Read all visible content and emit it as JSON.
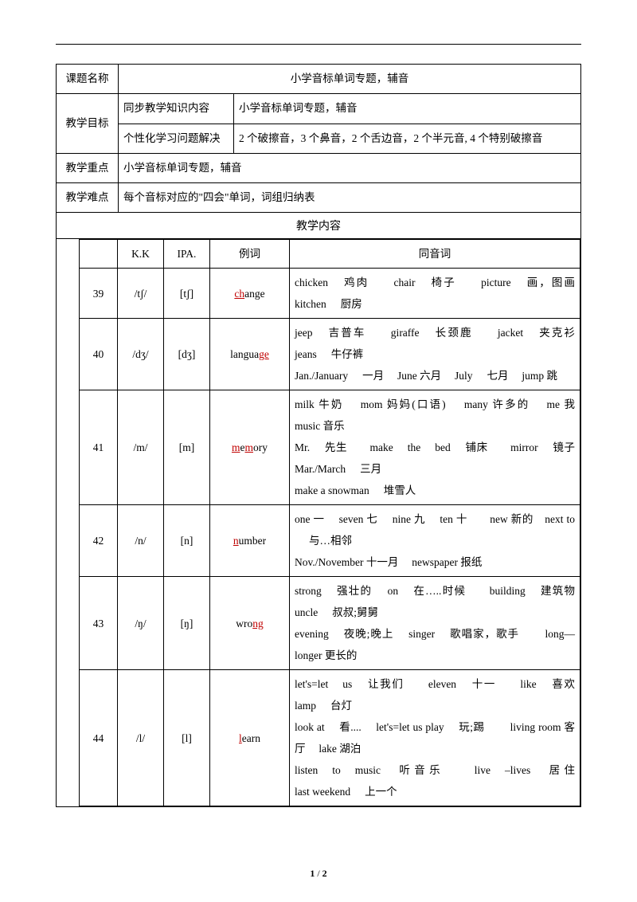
{
  "meta": {
    "row1_label": "课题名称",
    "row1_value": "小学音标单词专题，辅音",
    "row2_label": "教学目标",
    "row2_c2": "同步教学知识内容",
    "row2_c3": "小学音标单词专题，辅音",
    "row3_c2": "个性化学习问题解决",
    "row3_c3": "2 个破擦音，3 个鼻音，2 个舌边音，2 个半元音, 4 个特别破擦音",
    "row4_label": "教学重点",
    "row4_value": "小学音标单词专题，辅音",
    "row5_label": "教学难点",
    "row5_value": "每个音标对应的\"四会\"单词，词组归纳表",
    "section": "教学内容"
  },
  "header": {
    "kk": "K.K",
    "ipa": "IPA.",
    "example": "例词",
    "homonym": "同音词"
  },
  "rows": [
    {
      "n": "39",
      "kk": "/tʃ/",
      "ipa": "[tʃ]",
      "ex_pre": "ch",
      "ex_post": "ange",
      "words": "chicken  鸡肉　　chair  椅子　　picture  画，图画　kitchen  厨房"
    },
    {
      "n": "40",
      "kk": "/dʒ/",
      "ipa": "[dʒ]",
      "ex_pre_plain": "langua",
      "ex_suf": "ge",
      "words": "jeep  吉普车　　giraffe  长颈鹿　　jacket  夹克衫　jeans  牛仔裤\nJan./January  一月　 June 六月　 July  七月　 jump 跳"
    },
    {
      "n": "41",
      "kk": "/m/",
      "ipa": "[m]",
      "ex_parts": [
        "m",
        "e",
        "m",
        "ory"
      ],
      "words": "milk 牛奶　 mom 妈妈(口语)　 many 许多的　 me 我　 music 音乐\nMr.  先生　　make  the  bed  铺床　　mirror  镜子　Mar./March  三月\nmake a snowman  堆雪人"
    },
    {
      "n": "42",
      "kk": "/n/",
      "ipa": "[n]",
      "ex_pre": "n",
      "ex_post": "umber",
      "words": "one 一  seven 七　 nine 九　 ten 十　　new 新的　next to  与…相邻\nNov./November 十一月　 newspaper 报纸"
    },
    {
      "n": "43",
      "kk": "/ŋ/",
      "ipa": "[ŋ]",
      "ex_pre_plain": "wro",
      "ex_suf": "ng",
      "words": "strong  强壮的　 on  在…..时候　　building  建筑物　uncle  叔叔;舅舅\nevening  夜晚;晚上　 singer  歌唱家，歌手　  long—longer 更长的"
    },
    {
      "n": "44",
      "kk": "/l/",
      "ipa": "[l]",
      "ex_pre": "l",
      "ex_post": "earn",
      "words": "let's=let  us  让我们　　eleven  十一　　like  喜欢　lamp  台灯\nlook at  看....　 let's=let us play  玩;踢　  living room 客厅　 lake 湖泊\nlisten  to  music  听音乐　　live  –lives  居住　　last weekend  上一个"
    }
  ],
  "colwidths": {
    "n": "48px",
    "kk": "58px",
    "ipa": "58px",
    "ex": "100px"
  },
  "pagenum": {
    "cur": "1",
    "sep": " / ",
    "total": "2"
  }
}
